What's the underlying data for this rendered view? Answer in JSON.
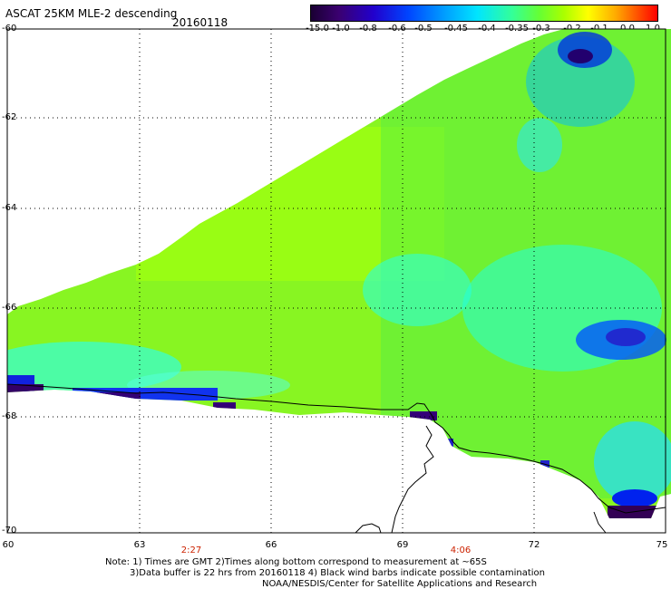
{
  "header": {
    "title": "ASCAT 25KM MLE-2 descending",
    "date": "20160118"
  },
  "colorbar": {
    "ticks": [
      "-15.0",
      "-1.0",
      "-0.8",
      "-0.6",
      "-0.5",
      "-0.45",
      "-0.4",
      "-0.35",
      "-0.3",
      "-0.2",
      "-0.1",
      "0.0",
      "1.0"
    ]
  },
  "axes": {
    "lat_labels": [
      "-60",
      "-62",
      "-64",
      "-66",
      "-68",
      "-70"
    ],
    "lon_labels": [
      "60",
      "63",
      "66",
      "69",
      "72",
      "75"
    ],
    "time_labels": [
      "2:27",
      "4:06"
    ]
  },
  "notes": {
    "line1": "Note: 1) Times are GMT 2)Times along bottom correspond to measurement at ~65S",
    "line2": "3)Data buffer is 22 hrs from 20160118 4) Black wind barbs indicate possible contamination",
    "line3": "NOAA/NESDIS/Center for Satellite Applications and Research"
  },
  "colors": {
    "dominant_field": "#99ff11",
    "coast": "#000000",
    "time_label": "#cc2200"
  }
}
